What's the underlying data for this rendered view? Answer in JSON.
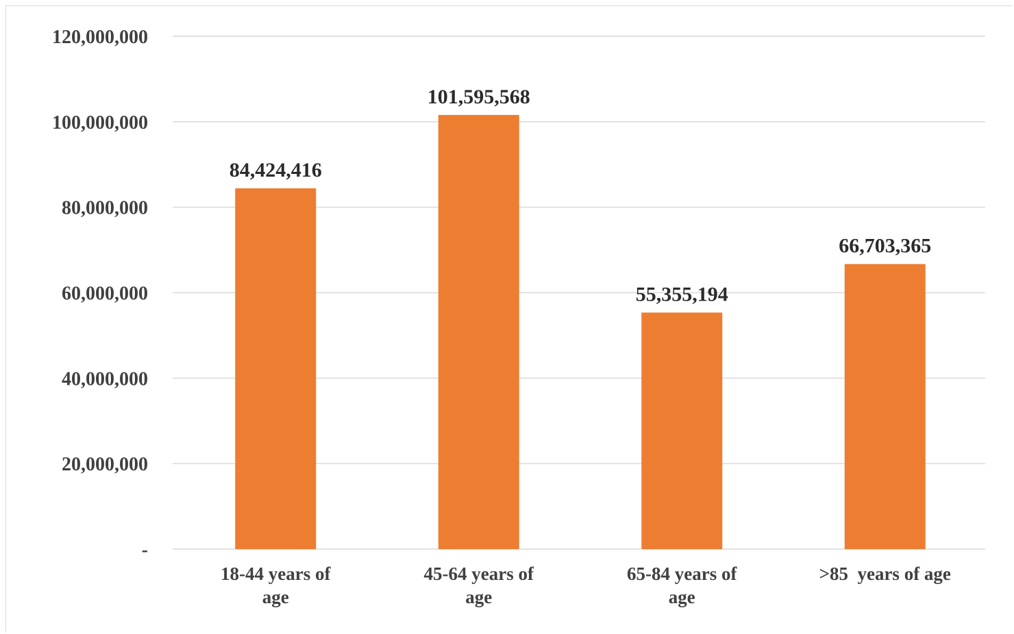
{
  "chart_data": {
    "type": "bar",
    "categories": [
      [
        "18-44 years of",
        "age"
      ],
      [
        "45-64 years of",
        "age"
      ],
      [
        "65-84 years of",
        "age"
      ],
      [
        ">85  years of age"
      ]
    ],
    "values": [
      84424416,
      101595568,
      55355194,
      66703365
    ],
    "data_labels": [
      "84,424,416",
      "101,595,568",
      "55,355,194",
      "66,703,365"
    ],
    "y_ticks": [
      0,
      20000000,
      40000000,
      60000000,
      80000000,
      100000000,
      120000000
    ],
    "y_tick_labels": [
      "-",
      "20,000,000",
      "40,000,000",
      "60,000,000",
      "80,000,000",
      "100,000,000",
      "120,000,000"
    ],
    "ylim": [
      0,
      120000000
    ],
    "grid": true,
    "legend": "none",
    "bar_color": "#ED7D31",
    "grid_color": "#d9d9d9"
  }
}
